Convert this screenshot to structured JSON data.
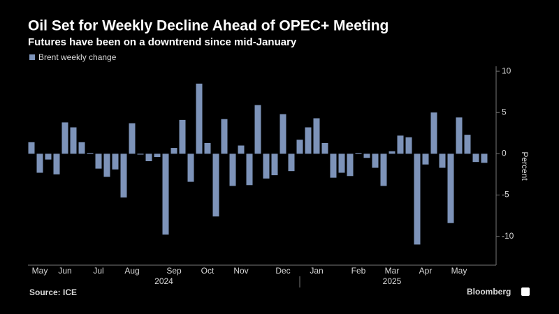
{
  "chart_data": {
    "type": "bar",
    "title": "Oil Set for Weekly Decline Ahead of OPEC+ Meeting",
    "subtitle": "Futures have been on a downtrend since mid-January",
    "y_label": "Percent",
    "source": "Source: ICE",
    "brand": "Bloomberg",
    "year_labels": [
      "2024",
      "2025"
    ],
    "categories": [
      null,
      "May",
      null,
      null,
      "Jun",
      null,
      null,
      null,
      "Jul",
      null,
      null,
      null,
      "Aug",
      null,
      null,
      null,
      null,
      "Sep",
      null,
      null,
      null,
      "Oct",
      null,
      null,
      null,
      "Nov",
      null,
      null,
      null,
      null,
      "Dec",
      null,
      null,
      null,
      "Jan",
      null,
      null,
      null,
      null,
      "Feb",
      null,
      null,
      null,
      "Mar",
      null,
      null,
      null,
      "Apr",
      null,
      null,
      null,
      "May",
      null,
      null,
      null
    ],
    "series": [
      {
        "name": "Brent weekly change",
        "color": "#7d93b9",
        "values": [
          1.4,
          -2.3,
          -0.7,
          -2.5,
          3.8,
          3.2,
          1.4,
          0.1,
          -1.8,
          -2.8,
          -1.9,
          -5.3,
          3.7,
          -0.1,
          -0.9,
          -0.4,
          -9.8,
          0.7,
          4.1,
          -3.4,
          8.5,
          1.3,
          -7.6,
          4.2,
          -3.9,
          1.0,
          -3.8,
          5.9,
          -3.0,
          -2.6,
          4.8,
          -2.1,
          1.7,
          3.2,
          4.3,
          1.3,
          -2.9,
          -2.3,
          -2.7,
          0.1,
          -0.5,
          -1.7,
          -3.9,
          0.3,
          2.2,
          2.0,
          -11.0,
          -1.3,
          5.0,
          -1.7,
          -8.4,
          4.4,
          2.3,
          -1.0,
          -1.1
        ]
      }
    ],
    "ylim": [
      -13.5,
      10.6
    ],
    "yticks": [
      -10,
      -5,
      0,
      5,
      10
    ]
  }
}
